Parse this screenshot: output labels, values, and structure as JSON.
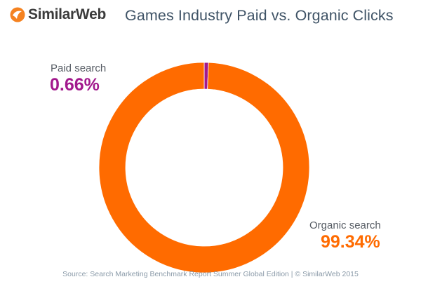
{
  "header": {
    "logo_text": "SimilarWeb",
    "logo_icon": "similarweb-logo-icon",
    "title": "Games Industry Paid vs. Organic Clicks"
  },
  "chart_data": {
    "type": "pie",
    "donut": true,
    "title": "Games Industry Paid vs. Organic Clicks",
    "slices": [
      {
        "name": "Paid search",
        "value": 0.66,
        "value_label": "0.66%",
        "color": "#a2198d"
      },
      {
        "name": "Organic search",
        "value": 99.34,
        "value_label": "99.34%",
        "color": "#ff6b00"
      }
    ],
    "legend": "labels beside slices"
  },
  "footer": {
    "source": "Source: Search Marketing Benchmark Report Summer Global Edition   |   © SimilarWeb 2015"
  },
  "colors": {
    "logo_orange": "#f58220",
    "title": "#3f5366",
    "paid": "#a2198d",
    "organic": "#ff6b00"
  }
}
